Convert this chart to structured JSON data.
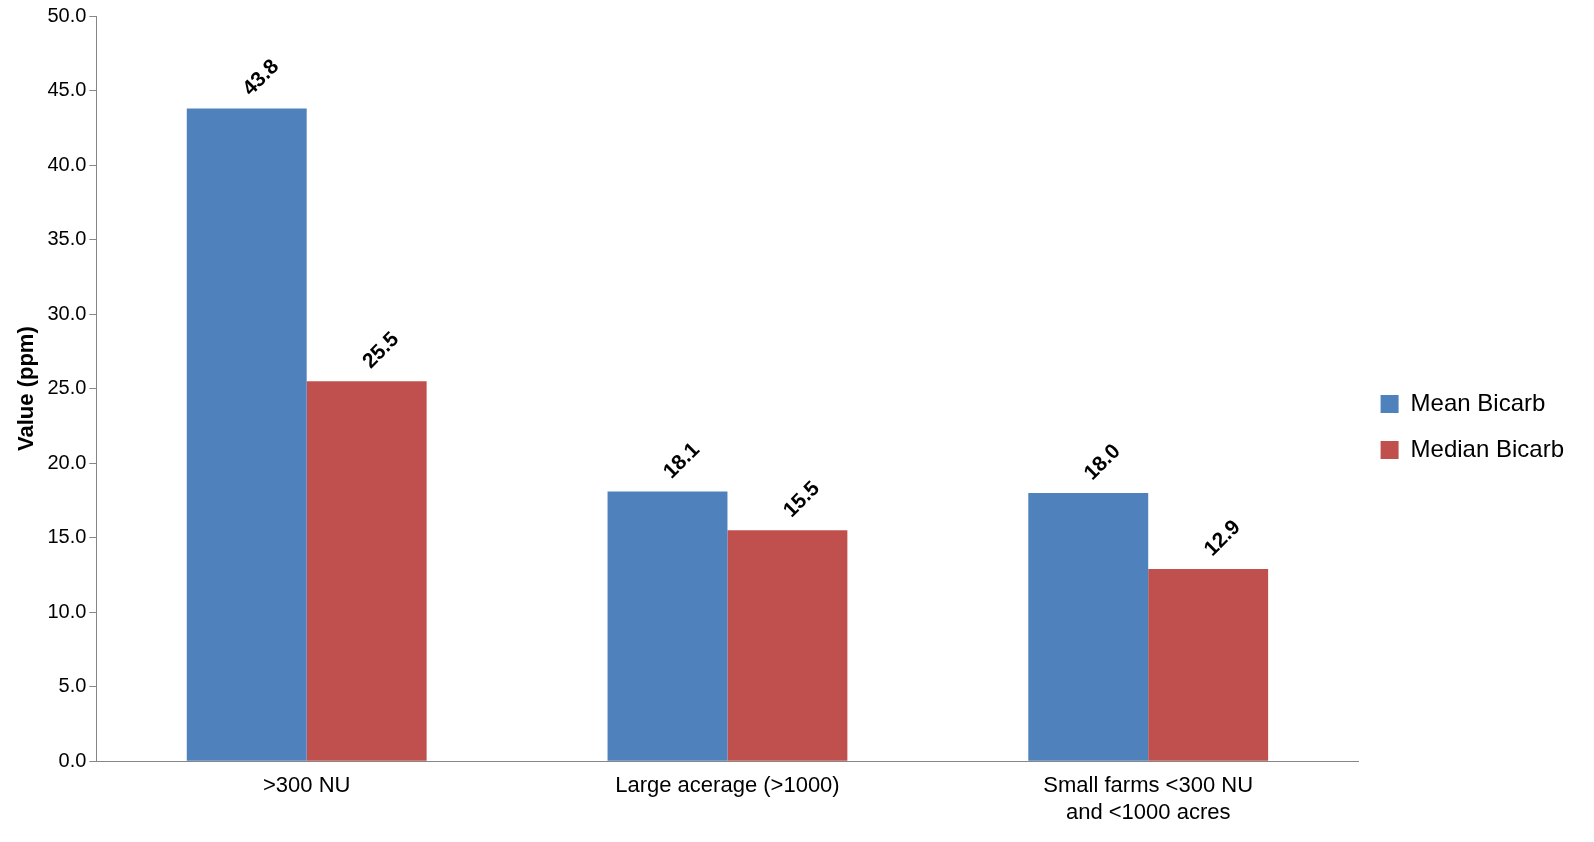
{
  "chart_data": {
    "type": "bar",
    "ylabel": "Value (ppm)",
    "categories": [
      ">300 NU",
      "Large acerage (>1000)",
      "Small farms <300 NU and <1000 acres"
    ],
    "series": [
      {
        "name": "Mean Bicarb",
        "color": "#4f81bd",
        "values": [
          43.8,
          18.1,
          18.0
        ],
        "value_labels": [
          "43.8",
          "18.1",
          "18.0"
        ]
      },
      {
        "name": "Median Bicarb",
        "color": "#c0504d",
        "values": [
          25.5,
          15.5,
          12.9
        ],
        "value_labels": [
          "25.5",
          "15.5",
          "12.9"
        ]
      }
    ],
    "ylim": [
      0,
      50
    ],
    "yticks": [
      {
        "value": 0,
        "label": "0.0"
      },
      {
        "value": 5,
        "label": "5.0"
      },
      {
        "value": 10,
        "label": "10.0"
      },
      {
        "value": 15,
        "label": "15.0"
      },
      {
        "value": 20,
        "label": "20.0"
      },
      {
        "value": 25,
        "label": "25.0"
      },
      {
        "value": 30,
        "label": "30.0"
      },
      {
        "value": 35,
        "label": "35.0"
      },
      {
        "value": 40,
        "label": "40.0"
      },
      {
        "value": 45,
        "label": "45.0"
      },
      {
        "value": 50,
        "label": "50.0"
      }
    ],
    "grid": false,
    "legend": "right"
  }
}
